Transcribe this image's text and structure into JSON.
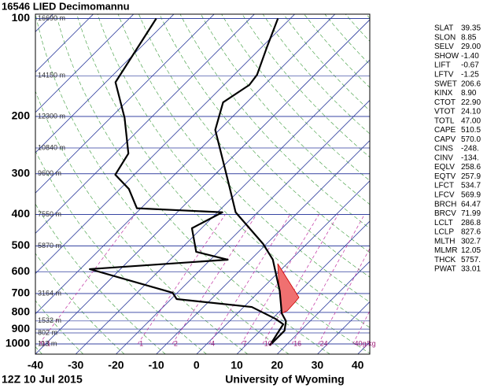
{
  "chart_data": {
    "type": "skewt",
    "title": "16546 LIED Decimomannu",
    "subtitle": "12Z 10 Jul 2015",
    "source": "University of Wyoming",
    "xlim": [
      -40,
      43
    ],
    "xticks": [
      -40,
      -30,
      -20,
      -10,
      0,
      10,
      20,
      30,
      40
    ],
    "ylim": [
      1075,
      97
    ],
    "yticks": [
      100,
      200,
      300,
      400,
      500,
      600,
      700,
      800,
      900,
      1000
    ],
    "log_y": true,
    "grid": true,
    "series": [
      {
        "color": "#000000",
        "pressure": [
          1010,
          910,
          851,
          805,
          688,
          551,
          493,
          394,
          334,
          267,
          220,
          181,
          160,
          149,
          122,
          100
        ],
        "values": [
          16,
          16,
          14,
          11,
          5,
          -4.5,
          -10.8,
          -25.5,
          -32.7,
          -42.5,
          -51,
          -55.9,
          -53.7,
          -54.3,
          -58.8,
          -63.1
        ]
      },
      {
        "color": "#000000",
        "pressure": [
          1010,
          870,
          837,
          770,
          728,
          696,
          589,
          551,
          521,
          441,
          394,
          383,
          334,
          302,
          260,
          202,
          157,
          100
        ],
        "values": [
          16,
          14.1,
          10.8,
          2,
          -18.6,
          -21.2,
          -47.6,
          -15.7,
          -25.5,
          -32.4,
          -28.8,
          -51,
          -57.8,
          -64.7,
          -66.7,
          -76.5,
          -87.6,
          -93.3
        ]
      }
    ],
    "height_labels": [
      {
        "pressure": 100,
        "label": "16690 m"
      },
      {
        "pressure": 150,
        "label": "14150 m"
      },
      {
        "pressure": 200,
        "label": "12300 m"
      },
      {
        "pressure": 250,
        "label": "10840 m"
      },
      {
        "pressure": 300,
        "label": "9600 m"
      },
      {
        "pressure": 400,
        "label": "7550 m"
      },
      {
        "pressure": 500,
        "label": "5870 m"
      },
      {
        "pressure": 700,
        "label": "3164 m"
      },
      {
        "pressure": 850,
        "label": "1532 m"
      },
      {
        "pressure": 925,
        "label": "802 m"
      },
      {
        "pressure": 1000,
        "label": "113 m"
      }
    ],
    "mixing_ratios": [
      0.1,
      1,
      2,
      4,
      7,
      10,
      16,
      24,
      {
        "value": 40,
        "label": "40g/kg"
      }
    ],
    "indices": [
      [
        "SLAT",
        "39.35"
      ],
      [
        "SLON",
        "8.85"
      ],
      [
        "SELV",
        "29.00"
      ],
      [
        "SHOW",
        "-1.40"
      ],
      [
        "LIFT",
        "-0.67"
      ],
      [
        "LFTV",
        "-1.25"
      ],
      [
        "SWET",
        "206.6"
      ],
      [
        "KINX",
        "8.90"
      ],
      [
        "CTOT",
        "22.90"
      ],
      [
        "VTOT",
        "24.10"
      ],
      [
        "TOTL",
        "47.00"
      ],
      [
        "CAPE",
        "510.5"
      ],
      [
        "CAPV",
        "570.0"
      ],
      [
        "CINS",
        "-248."
      ],
      [
        "CINV",
        "-134."
      ],
      [
        "EQLV",
        "258.6"
      ],
      [
        "EQTV",
        "257.9"
      ],
      [
        "LFCT",
        "534.7"
      ],
      [
        "LFCV",
        "569.9"
      ],
      [
        "BRCH",
        "64.47"
      ],
      [
        "BRCV",
        "71.99"
      ],
      [
        "LCLT",
        "286.8"
      ],
      [
        "LCLP",
        "827.6"
      ],
      [
        "MLTH",
        "302.7"
      ],
      [
        "MLMR",
        "12.05"
      ],
      [
        "THCK",
        "5757."
      ],
      [
        "PWAT",
        "33.01"
      ]
    ]
  }
}
